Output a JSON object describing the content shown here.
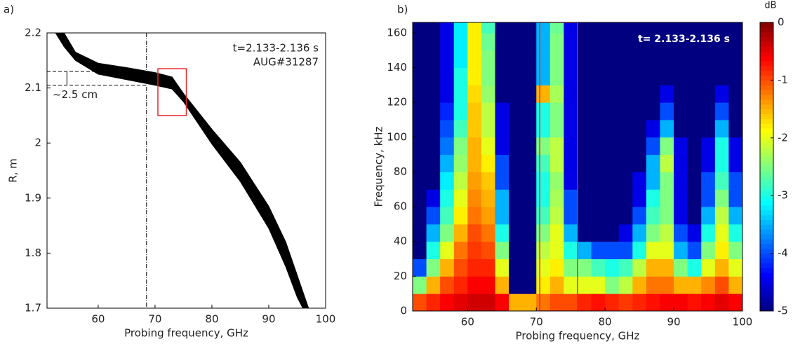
{
  "chart_data": [
    {
      "type": "band",
      "panel_label": "a)",
      "xlabel": "Probing frequency, GHz",
      "ylabel": "R, m",
      "annotations": [
        "t=2.133-2.136 s",
        "AUG#31287"
      ],
      "gap_label": "~2.5 cm",
      "x": [
        52.5,
        54,
        56,
        60,
        65,
        70,
        73,
        75,
        80,
        85,
        90,
        93,
        95,
        96,
        97
      ],
      "upper": [
        2.2,
        2.2,
        2.165,
        2.145,
        2.137,
        2.128,
        2.12,
        2.09,
        2.025,
        1.965,
        1.885,
        1.82,
        1.76,
        1.73,
        1.7
      ],
      "lower": [
        2.2,
        2.175,
        2.15,
        2.125,
        2.115,
        2.105,
        2.098,
        2.075,
        1.998,
        1.93,
        1.845,
        1.775,
        1.72,
        1.7,
        1.7
      ],
      "color": "#000000",
      "vline": 68.5,
      "hlines": [
        2.13,
        2.105
      ],
      "box": {
        "x": [
          70.5,
          75.5
        ],
        "y": [
          2.05,
          2.135
        ],
        "color": "#e8262a"
      },
      "xlim": [
        51,
        100
      ],
      "xticks": [
        60,
        70,
        80,
        90,
        100
      ],
      "ylim": [
        1.7,
        2.2
      ],
      "yticks": [
        1.7,
        1.8,
        1.9,
        2,
        2.1,
        2.2
      ]
    },
    {
      "type": "heatmap",
      "panel_label": "b)",
      "xlabel": "Probing frequency, GHz",
      "ylabel": "Frequency, kHz",
      "annotation": "t= 2.133-2.136 s",
      "colorbar_label": "dB",
      "colormap": "jet",
      "xbins": [
        52,
        54,
        56,
        58,
        60,
        62,
        64,
        66,
        68,
        70,
        72,
        74,
        76,
        78,
        80,
        82,
        84,
        86,
        88,
        90,
        92,
        94,
        96,
        98,
        100
      ],
      "ybins": [
        0,
        10,
        20,
        30,
        40,
        50,
        60,
        70,
        80,
        90,
        100,
        110,
        120,
        130,
        140,
        150,
        160,
        166
      ],
      "z": [
        [
          -1,
          -0.8,
          -0.6,
          -0.5,
          -0.4,
          -0.4,
          -0.6,
          -1.5,
          -1.5,
          -1.2,
          -1,
          -1,
          -0.8,
          -0.7,
          -0.8,
          -0.9,
          -0.8,
          -0.7,
          -0.6,
          -0.6,
          -0.7,
          -0.6,
          -0.5,
          -0.6
        ],
        [
          -2.5,
          -1.5,
          -1,
          -0.8,
          -0.6,
          -0.6,
          -1.5,
          -5,
          -5,
          -1.8,
          -1.5,
          -2,
          -2,
          -2,
          -2.5,
          -2.2,
          -1.5,
          -1.2,
          -1.2,
          -1.5,
          -1.5,
          -1.3,
          -1,
          -1.5
        ],
        [
          -4,
          -2.5,
          -1.5,
          -1,
          -0.8,
          -0.8,
          -2,
          -5,
          -5,
          -2,
          -1.8,
          -2.5,
          -2.5,
          -2.8,
          -3,
          -2.8,
          -2.2,
          -1.5,
          -1.5,
          -2.5,
          -3,
          -2,
          -1.5,
          -2
        ],
        [
          -5,
          -3,
          -2,
          -1.2,
          -0.9,
          -1,
          -2.5,
          -5,
          -5,
          -2.2,
          -2,
          -3,
          -3.5,
          -4,
          -4,
          -4,
          -3,
          -2,
          -2,
          -3.5,
          -4,
          -2.5,
          -1.8,
          -2.5
        ],
        [
          -5,
          -3.5,
          -2.5,
          -1.5,
          -1,
          -1.2,
          -3,
          -5,
          -5,
          -2.5,
          -2,
          -3.5,
          -5,
          -5,
          -5,
          -4.5,
          -3.5,
          -2.5,
          -2.2,
          -4,
          -4.5,
          -3,
          -2,
          -3
        ],
        [
          -5,
          -4,
          -2.8,
          -1.8,
          -1.2,
          -1.4,
          -3.5,
          -5,
          -5,
          -2.8,
          -2.2,
          -4,
          -5,
          -5,
          -5,
          -5,
          -4,
          -2.8,
          -2.5,
          -4.5,
          -5,
          -3.5,
          -2.2,
          -3.5
        ],
        [
          -5,
          -4.5,
          -3,
          -2,
          -1.3,
          -1.5,
          -3.5,
          -5,
          -5,
          -3,
          -2.3,
          -4,
          -5,
          -5,
          -5,
          -5,
          -4.5,
          -3,
          -2.5,
          -4.5,
          -5,
          -4,
          -2.5,
          -4
        ],
        [
          -5,
          -5,
          -3.2,
          -2.2,
          -1.4,
          -1.6,
          -4,
          -5,
          -5,
          -3,
          -2.4,
          -4.5,
          -5,
          -5,
          -5,
          -5,
          -4.5,
          -3.5,
          -2.5,
          -4.5,
          -5,
          -4,
          -2.8,
          -4
        ],
        [
          -5,
          -5,
          -3.5,
          -2.4,
          -1.5,
          -1.8,
          -4,
          -5,
          -5,
          -2.8,
          -2.2,
          -4.5,
          -5,
          -5,
          -5,
          -5,
          -5,
          -3.5,
          -2.2,
          -4.5,
          -5,
          -4.5,
          -3,
          -4.5
        ],
        [
          -5,
          -5,
          -3.8,
          -2.5,
          -1.5,
          -2,
          -4.5,
          -5,
          -5,
          -2.5,
          -2.2,
          -4.5,
          -5,
          -5,
          -5,
          -5,
          -5,
          -4,
          -2.5,
          -4.5,
          -5,
          -4.5,
          -3,
          -4.5
        ],
        [
          -5,
          -5,
          -4,
          -2.8,
          -1.6,
          -2.2,
          -4.5,
          -5,
          -5,
          -3,
          -2.5,
          -4.5,
          -5,
          -5,
          -5,
          -5,
          -5,
          -4.5,
          -3.5,
          -5,
          -5,
          -5,
          -3.5,
          -5
        ],
        [
          -5,
          -5,
          -4.2,
          -3,
          -1.6,
          -2.2,
          -4.5,
          -5,
          -5,
          -3,
          -2.5,
          -4.5,
          -5,
          -5,
          -5,
          -5,
          -5,
          -5,
          -4,
          -5,
          -5,
          -5,
          -4,
          -5
        ],
        [
          -5,
          -5,
          -4.5,
          -3,
          -1.7,
          -2.4,
          -5,
          -5,
          -5,
          -1.5,
          -2.3,
          -4.5,
          -5,
          -5,
          -5,
          -5,
          -5,
          -5,
          -4.5,
          -5,
          -5,
          -5,
          -4.5,
          -5
        ],
        [
          -5,
          -5,
          -4.5,
          -3,
          -1.8,
          -2.5,
          -5,
          -5,
          -5,
          -3.5,
          -2.5,
          -4.5,
          -5,
          -5,
          -5,
          -5,
          -5,
          -5,
          -5,
          -5,
          -5,
          -5,
          -5,
          -5
        ],
        [
          -5,
          -5,
          -4.5,
          -3.2,
          -1.8,
          -2.5,
          -5,
          -5,
          -5,
          -3.5,
          -2.5,
          -4.5,
          -5,
          -5,
          -5,
          -5,
          -5,
          -5,
          -5,
          -5,
          -5,
          -5,
          -5,
          -5
        ],
        [
          -5,
          -5,
          -4.5,
          -3.2,
          -1.8,
          -2.6,
          -5,
          -5,
          -5,
          -3.5,
          -2.5,
          -4.5,
          -5,
          -5,
          -5,
          -5,
          -5,
          -5,
          -5,
          -5,
          -5,
          -5,
          -5,
          -5
        ],
        [
          -5,
          -5,
          -4.5,
          -3.2,
          -1.8,
          -2.8,
          -5,
          -5,
          -5,
          -3.5,
          -2.6,
          -4.5,
          -5,
          -5,
          -5,
          -5,
          -5,
          -5,
          -5,
          -5,
          -5,
          -5,
          -5,
          -5
        ]
      ],
      "box": {
        "x": [
          70.5,
          76
        ],
        "color": "#e8262a"
      },
      "xlim": [
        52,
        100
      ],
      "xticks": [
        60,
        70,
        80,
        90,
        100
      ],
      "ylim": [
        0,
        166
      ],
      "yticks": [
        0,
        20,
        40,
        60,
        80,
        100,
        120,
        140,
        160
      ],
      "clim": [
        -5,
        0
      ],
      "cticks": [
        0,
        -1,
        -2,
        -3,
        -4,
        -5
      ]
    }
  ]
}
